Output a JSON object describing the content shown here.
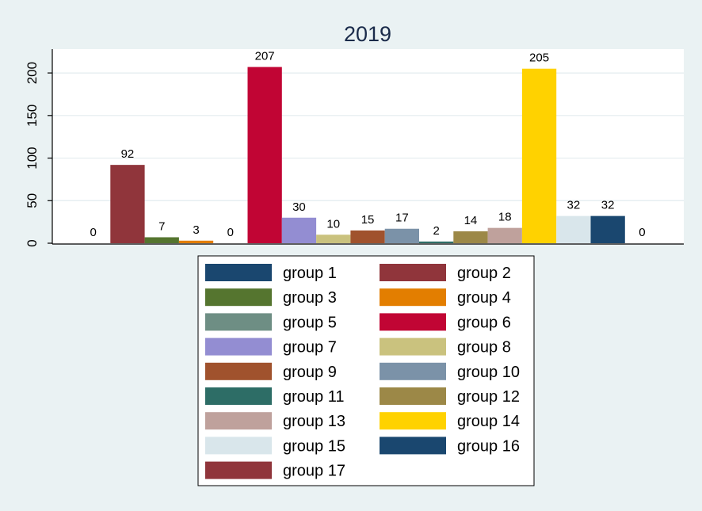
{
  "chart_data": {
    "type": "bar",
    "title": "2019",
    "xlabel": "",
    "ylabel": "",
    "ylim": [
      0,
      228
    ],
    "yticks": [
      0,
      50,
      100,
      150,
      200
    ],
    "grid": true,
    "legend_placement": "bottom",
    "series": [
      {
        "name": "group 1",
        "value": 0,
        "color": "#1a476f"
      },
      {
        "name": "group 2",
        "value": 92,
        "color": "#90353b"
      },
      {
        "name": "group 3",
        "value": 7,
        "color": "#55752f"
      },
      {
        "name": "group 4",
        "value": 3,
        "color": "#e37e00"
      },
      {
        "name": "group 5",
        "value": 0,
        "color": "#6e8e84"
      },
      {
        "name": "group 6",
        "value": 207,
        "color": "#c10534"
      },
      {
        "name": "group 7",
        "value": 30,
        "color": "#938dd2"
      },
      {
        "name": "group 8",
        "value": 10,
        "color": "#cac27e"
      },
      {
        "name": "group 9",
        "value": 15,
        "color": "#a0522d"
      },
      {
        "name": "group 10",
        "value": 17,
        "color": "#7b92a8"
      },
      {
        "name": "group 11",
        "value": 2,
        "color": "#2d6d66"
      },
      {
        "name": "group 12",
        "value": 14,
        "color": "#9c8847"
      },
      {
        "name": "group 13",
        "value": 18,
        "color": "#bfa19c"
      },
      {
        "name": "group 14",
        "value": 205,
        "color": "#ffd200"
      },
      {
        "name": "group 15",
        "value": 32,
        "color": "#d9e6eb"
      },
      {
        "name": "group 16",
        "value": 32,
        "color": "#1a476f"
      },
      {
        "name": "group 17",
        "value": 0,
        "color": "#90353b"
      }
    ]
  }
}
